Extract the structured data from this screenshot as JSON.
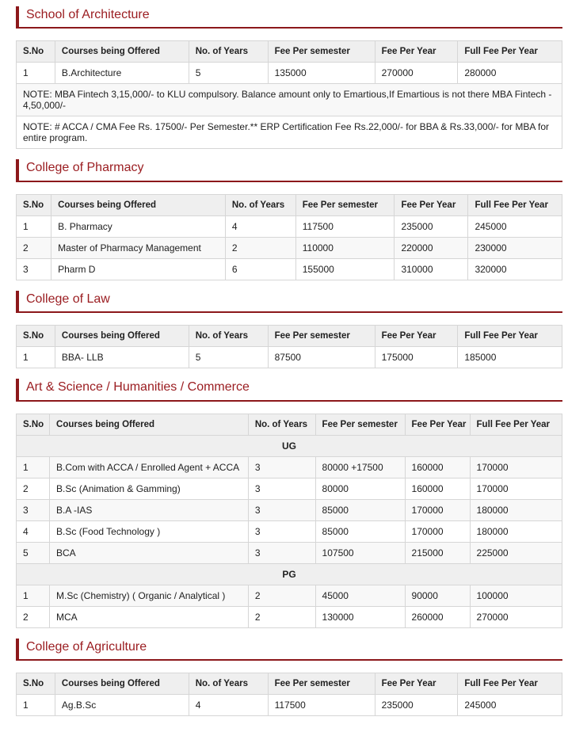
{
  "page": {
    "accent_color": "#9b1e22",
    "table_header_bg": "#efefef",
    "border_color": "#d6d6d6"
  },
  "table": {
    "columns": [
      "S.No",
      "Courses being Offered",
      "No. of Years",
      "Fee Per semester",
      "Fee Per Year",
      "Full Fee Per Year"
    ]
  },
  "sections": [
    {
      "title": "School of Architecture",
      "rows": [
        {
          "type": "course",
          "cells": [
            "1",
            "B.Architecture",
            "5",
            "135000",
            "270000",
            "280000"
          ]
        },
        {
          "type": "note",
          "text": "NOTE: MBA Fintech 3,15,000/- to KLU compulsory. Balance amount only to Emartious,If Emartious is not there MBA Fintech - 4,50,000/-"
        },
        {
          "type": "note",
          "text": "NOTE: # ACCA / CMA Fee Rs. 17500/- Per Semester.** ERP Certification Fee Rs.22,000/- for BBA & Rs.33,000/- for MBA for entire program."
        }
      ]
    },
    {
      "title": "College of Pharmacy",
      "rows": [
        {
          "type": "course",
          "cells": [
            "1",
            "B. Pharmacy",
            "4",
            "117500",
            "235000",
            "245000"
          ]
        },
        {
          "type": "course",
          "cells": [
            "2",
            "Master of Pharmacy Management",
            "2",
            "110000",
            "220000",
            "230000"
          ]
        },
        {
          "type": "course",
          "cells": [
            "3",
            "Pharm D",
            "6",
            "155000",
            "310000",
            "320000"
          ]
        }
      ]
    },
    {
      "title": "College of Law",
      "rows": [
        {
          "type": "course",
          "cells": [
            "1",
            "BBA- LLB",
            "5",
            "87500",
            "175000",
            "185000"
          ]
        }
      ]
    },
    {
      "title": "Art & Science / Humanities / Commerce",
      "rows": [
        {
          "type": "group",
          "label": "UG"
        },
        {
          "type": "course",
          "cells": [
            "1",
            "B.Com with ACCA / Enrolled Agent + ACCA",
            "3",
            "80000 +17500",
            "160000",
            "170000"
          ]
        },
        {
          "type": "course",
          "cells": [
            "2",
            "B.Sc (Animation & Gamming)",
            "3",
            "80000",
            "160000",
            "170000"
          ]
        },
        {
          "type": "course",
          "cells": [
            "3",
            "B.A -IAS",
            "3",
            "85000",
            "170000",
            "180000"
          ]
        },
        {
          "type": "course",
          "cells": [
            "4",
            "B.Sc (Food Technology )",
            "3",
            "85000",
            "170000",
            "180000"
          ]
        },
        {
          "type": "course",
          "cells": [
            "5",
            "BCA",
            "3",
            "107500",
            "215000",
            "225000"
          ]
        },
        {
          "type": "group",
          "label": "PG"
        },
        {
          "type": "course",
          "cells": [
            "1",
            "M.Sc (Chemistry) ( Organic / Analytical )",
            "2",
            "45000",
            "90000",
            "100000"
          ]
        },
        {
          "type": "course",
          "cells": [
            "2",
            "MCA",
            "2",
            "130000",
            "260000",
            "270000"
          ]
        }
      ]
    },
    {
      "title": "College of Agriculture",
      "rows": [
        {
          "type": "course",
          "cells": [
            "1",
            "Ag.B.Sc",
            "4",
            "117500",
            "235000",
            "245000"
          ]
        }
      ]
    }
  ]
}
